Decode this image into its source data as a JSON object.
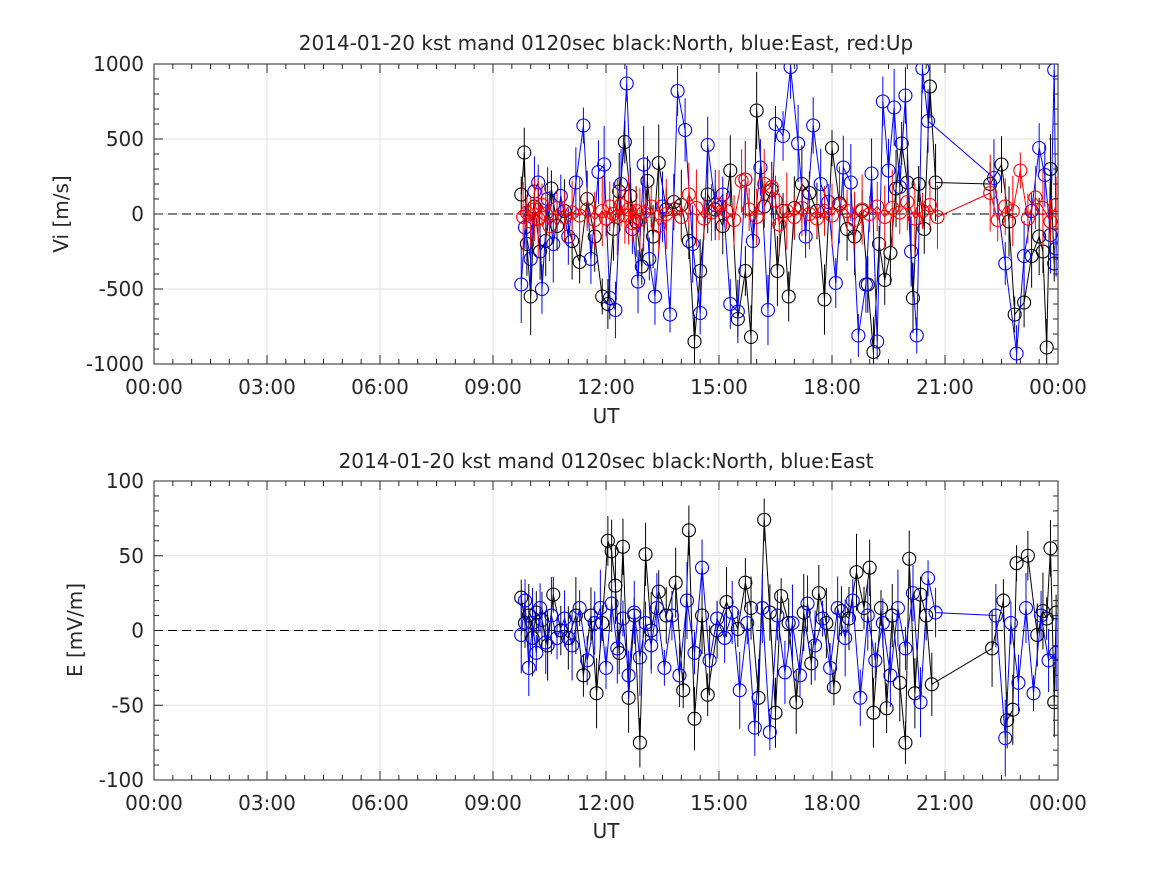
{
  "chart_data": [
    {
      "type": "scatter",
      "title": "2014-01-20 kst mand 0120sec black:North, blue:East, red:Up",
      "xlabel": "UT",
      "ylabel": "Vi [m/s]",
      "xlim": [
        "00:00",
        "24:00"
      ],
      "ylim": [
        -1000,
        1000
      ],
      "xtick_labels": [
        "00:00",
        "03:00",
        "06:00",
        "09:00",
        "12:00",
        "15:00",
        "18:00",
        "21:00",
        "00:00"
      ],
      "ytick_labels": [
        "1000",
        "500",
        "0",
        "-500",
        "-1000"
      ],
      "x_unit": "hours UT",
      "grid": true,
      "reference_line": 0,
      "series": [
        {
          "name": "North",
          "color": "#000000",
          "marker": "circle",
          "x": [
            9.75,
            9.83,
            9.9,
            10.0,
            10.1,
            10.25,
            10.4,
            10.55,
            10.7,
            10.9,
            11.1,
            11.3,
            11.5,
            11.7,
            11.9,
            12.05,
            12.2,
            12.35,
            12.5,
            12.65,
            12.8,
            12.95,
            13.1,
            13.25,
            13.4,
            13.6,
            13.8,
            14.0,
            14.2,
            14.35,
            14.5,
            14.7,
            14.9,
            15.1,
            15.3,
            15.5,
            15.7,
            15.85,
            16.0,
            16.2,
            16.4,
            16.55,
            16.7,
            16.85,
            17.0,
            17.2,
            17.4,
            17.6,
            17.8,
            18.0,
            18.2,
            18.4,
            18.6,
            18.8,
            18.95,
            19.1,
            19.25,
            19.4,
            19.55,
            19.7,
            19.85,
            20.0,
            20.15,
            20.3,
            20.45,
            20.6,
            20.75,
            22.2,
            22.5,
            22.7,
            22.85,
            23.1,
            23.3,
            23.5,
            23.6,
            23.7,
            23.8,
            23.9
          ],
          "y": [
            130,
            410,
            -200,
            -550,
            50,
            -250,
            -180,
            170,
            -80,
            20,
            -180,
            -320,
            100,
            -150,
            -550,
            -600,
            -100,
            150,
            480,
            120,
            -50,
            -350,
            220,
            -150,
            340,
            30,
            80,
            60,
            -180,
            -850,
            -380,
            130,
            30,
            -80,
            290,
            -700,
            -380,
            -820,
            690,
            50,
            160,
            -380,
            20,
            -550,
            40,
            200,
            140,
            20,
            -570,
            440,
            70,
            -100,
            -150,
            20,
            -470,
            -920,
            -200,
            -440,
            -260,
            170,
            470,
            210,
            -560,
            200,
            -100,
            850,
            210,
            200,
            330,
            -50,
            -670,
            -590,
            -280,
            -150,
            -250,
            -890,
            300,
            -330
          ]
        },
        {
          "name": "East",
          "color": "#0000ff",
          "marker": "circle",
          "x": [
            9.75,
            9.85,
            10.0,
            10.1,
            10.2,
            10.3,
            10.45,
            10.6,
            10.8,
            11.0,
            11.2,
            11.4,
            11.6,
            11.8,
            11.95,
            12.1,
            12.25,
            12.4,
            12.55,
            12.7,
            12.85,
            13.0,
            13.15,
            13.3,
            13.5,
            13.7,
            13.9,
            14.1,
            14.3,
            14.5,
            14.7,
            14.9,
            15.1,
            15.3,
            15.5,
            15.7,
            15.9,
            16.1,
            16.3,
            16.5,
            16.7,
            16.9,
            17.1,
            17.3,
            17.5,
            17.7,
            17.9,
            18.1,
            18.3,
            18.5,
            18.7,
            18.9,
            19.05,
            19.2,
            19.35,
            19.5,
            19.65,
            19.8,
            19.95,
            20.1,
            20.25,
            20.4,
            20.55,
            22.3,
            22.6,
            22.9,
            23.1,
            23.3,
            23.5,
            23.65,
            23.8,
            23.9,
            23.95
          ],
          "y": [
            -470,
            -90,
            -300,
            150,
            210,
            -500,
            100,
            -200,
            120,
            -150,
            210,
            590,
            -300,
            280,
            330,
            -560,
            -640,
            200,
            870,
            -100,
            -450,
            330,
            -300,
            -550,
            50,
            -670,
            820,
            560,
            -200,
            -660,
            460,
            60,
            130,
            -600,
            -650,
            230,
            -180,
            310,
            -640,
            600,
            520,
            980,
            470,
            -150,
            590,
            200,
            80,
            -460,
            310,
            210,
            -810,
            -470,
            270,
            -850,
            750,
            290,
            710,
            180,
            790,
            -250,
            -810,
            970,
            620,
            240,
            -330,
            -930,
            -280,
            20,
            440,
            260,
            -140,
            960,
            -230
          ]
        },
        {
          "name": "Up",
          "color": "#ff0000",
          "marker": "circle",
          "x": [
            9.8,
            9.9,
            10.0,
            10.1,
            10.2,
            10.3,
            10.4,
            10.5,
            10.7,
            10.9,
            11.1,
            11.3,
            11.5,
            11.7,
            11.9,
            12.0,
            12.1,
            12.2,
            12.3,
            12.4,
            12.5,
            12.6,
            12.7,
            12.8,
            12.9,
            13.0,
            13.2,
            13.4,
            13.6,
            13.8,
            14.0,
            14.2,
            14.4,
            14.6,
            14.8,
            15.0,
            15.2,
            15.4,
            15.6,
            15.7,
            15.8,
            16.0,
            16.2,
            16.4,
            16.5,
            16.6,
            16.8,
            17.0,
            17.2,
            17.4,
            17.6,
            17.8,
            18.0,
            18.2,
            18.4,
            18.6,
            18.8,
            19.0,
            19.2,
            19.4,
            19.6,
            19.8,
            20.0,
            20.2,
            20.4,
            20.6,
            20.8,
            22.2,
            22.4,
            22.6,
            22.8,
            23.0,
            23.2,
            23.4,
            23.6,
            23.8,
            23.95
          ],
          "y": [
            -20,
            10,
            -50,
            30,
            -30,
            60,
            0,
            -80,
            40,
            -20,
            10,
            -10,
            30,
            -40,
            20,
            -30,
            50,
            0,
            -20,
            60,
            -10,
            30,
            -60,
            20,
            -40,
            10,
            50,
            -80,
            0,
            30,
            -20,
            130,
            40,
            -30,
            10,
            60,
            20,
            -40,
            220,
            230,
            30,
            -20,
            200,
            180,
            90,
            -70,
            20,
            -20,
            40,
            0,
            -30,
            20,
            -10,
            60,
            20,
            -40,
            30,
            0,
            50,
            -20,
            40,
            10,
            80,
            -30,
            20,
            60,
            -20,
            140,
            -40,
            50,
            20,
            290,
            -30,
            110,
            40,
            -50,
            60
          ]
        }
      ]
    },
    {
      "type": "scatter",
      "title": "2014-01-20 kst mand 0120sec black:North, blue:East",
      "xlabel": "UT",
      "ylabel": "E [mV/m]",
      "xlim": [
        "00:00",
        "24:00"
      ],
      "ylim": [
        -100,
        100
      ],
      "xtick_labels": [
        "00:00",
        "03:00",
        "06:00",
        "09:00",
        "12:00",
        "15:00",
        "18:00",
        "21:00",
        "00:00"
      ],
      "ytick_labels": [
        "100",
        "50",
        "0",
        "-50",
        "-100"
      ],
      "x_unit": "hours UT",
      "grid": true,
      "reference_line": 0,
      "series": [
        {
          "name": "North",
          "color": "#000000",
          "marker": "circle",
          "x": [
            9.75,
            9.85,
            9.95,
            10.05,
            10.15,
            10.3,
            10.45,
            10.6,
            10.8,
            11.0,
            11.2,
            11.4,
            11.6,
            11.75,
            11.9,
            12.05,
            12.15,
            12.25,
            12.35,
            12.45,
            12.6,
            12.75,
            12.9,
            13.05,
            13.2,
            13.4,
            13.6,
            13.85,
            14.05,
            14.2,
            14.35,
            14.55,
            14.7,
            14.95,
            15.2,
            15.5,
            15.7,
            15.85,
            16.05,
            16.2,
            16.35,
            16.5,
            16.65,
            16.85,
            17.05,
            17.25,
            17.45,
            17.65,
            17.85,
            18.05,
            18.25,
            18.45,
            18.65,
            18.85,
            19.0,
            19.1,
            19.3,
            19.45,
            19.6,
            19.8,
            19.95,
            20.05,
            20.2,
            20.35,
            20.5,
            20.65,
            22.25,
            22.55,
            22.65,
            22.8,
            22.9,
            23.2,
            23.45,
            23.6,
            23.7,
            23.8,
            23.9,
            23.95
          ],
          "y": [
            22,
            5,
            10,
            -5,
            12,
            7,
            -10,
            24,
            0,
            -5,
            10,
            -30,
            10,
            -42,
            5,
            60,
            53,
            30,
            -15,
            56,
            -45,
            10,
            -75,
            51,
            0,
            26,
            10,
            32,
            -40,
            67,
            -59,
            10,
            -43,
            0,
            19,
            1,
            32,
            15,
            -45,
            74,
            12,
            -55,
            23,
            5,
            -48,
            12,
            -22,
            25,
            5,
            -38,
            13,
            8,
            39,
            15,
            42,
            -55,
            15,
            -52,
            10,
            -35,
            -75,
            48,
            -42,
            24,
            10,
            -36,
            -12,
            20,
            -60,
            -53,
            45,
            50,
            -3,
            13,
            8,
            55,
            -48,
            12
          ]
        },
        {
          "name": "East",
          "color": "#0000ff",
          "marker": "circle",
          "x": [
            9.75,
            9.85,
            9.95,
            10.05,
            10.15,
            10.25,
            10.4,
            10.55,
            10.7,
            10.9,
            11.1,
            11.3,
            11.5,
            11.7,
            11.85,
            12.0,
            12.15,
            12.3,
            12.45,
            12.6,
            12.75,
            12.9,
            13.05,
            13.2,
            13.35,
            13.55,
            13.75,
            13.95,
            14.15,
            14.35,
            14.55,
            14.75,
            14.95,
            15.15,
            15.35,
            15.55,
            15.75,
            15.95,
            16.15,
            16.35,
            16.55,
            16.75,
            16.95,
            17.15,
            17.35,
            17.55,
            17.75,
            17.95,
            18.15,
            18.35,
            18.55,
            18.75,
            18.95,
            19.15,
            19.35,
            19.55,
            19.75,
            19.95,
            20.15,
            20.35,
            20.55,
            20.75,
            22.35,
            22.6,
            22.75,
            22.95,
            23.15,
            23.35,
            23.55,
            23.75,
            23.95
          ],
          "y": [
            -3,
            20,
            -25,
            5,
            -15,
            15,
            -8,
            10,
            -5,
            8,
            -10,
            15,
            -20,
            5,
            15,
            -25,
            18,
            -12,
            8,
            -30,
            12,
            -18,
            5,
            -10,
            15,
            -25,
            10,
            -30,
            20,
            -15,
            42,
            -20,
            8,
            -5,
            12,
            -40,
            5,
            -65,
            15,
            -68,
            10,
            -28,
            5,
            -30,
            18,
            -10,
            8,
            -25,
            15,
            -5,
            20,
            -45,
            10,
            -20,
            5,
            -30,
            15,
            -12,
            25,
            -48,
            35,
            12,
            10,
            -72,
            5,
            -35,
            15,
            -42,
            10,
            -20,
            -15
          ]
        }
      ]
    }
  ]
}
